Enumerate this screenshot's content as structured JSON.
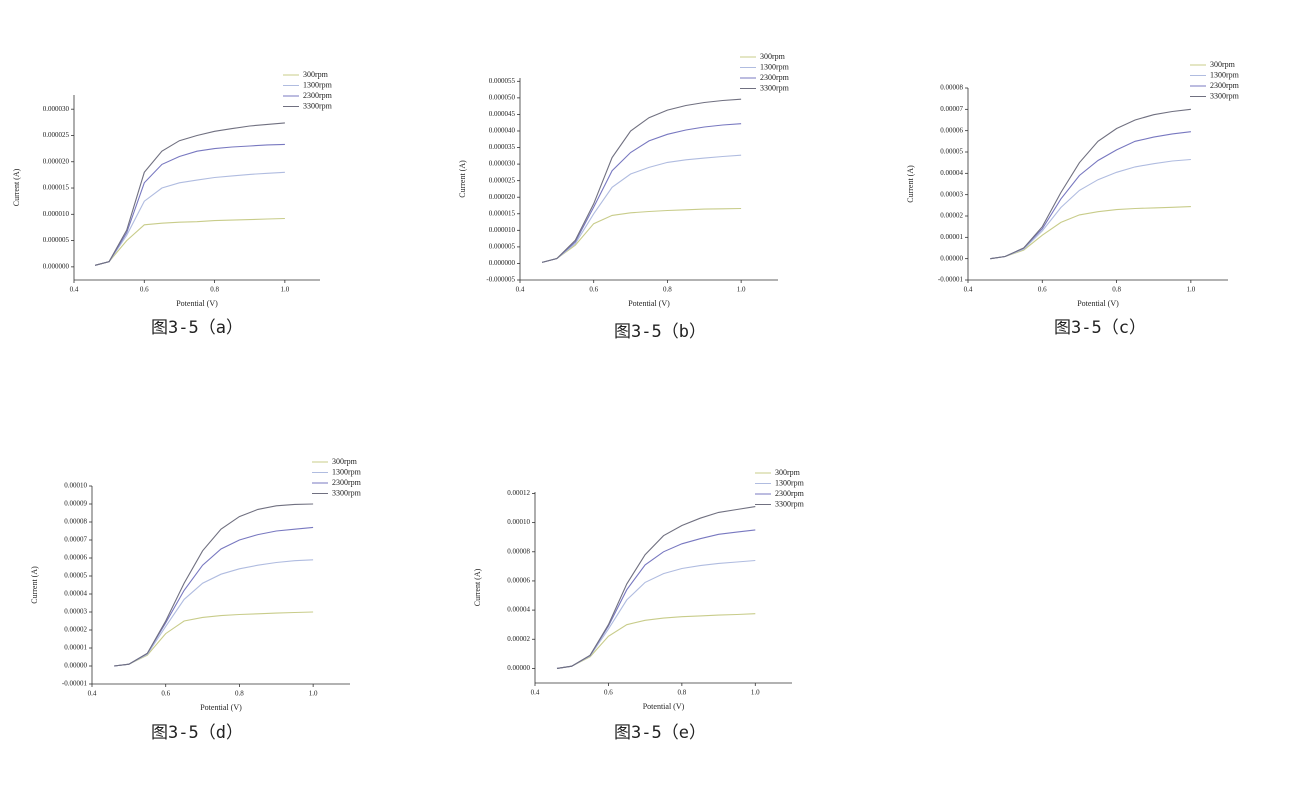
{
  "chart_data": [
    {
      "type": "line",
      "caption": "图3-5（a）",
      "x_label": "Potential (V)",
      "y_label": "Current (A)",
      "x": [
        0.46,
        0.5,
        0.55,
        0.6,
        0.65,
        0.7,
        0.75,
        0.8,
        0.85,
        0.9,
        0.95,
        1.0
      ],
      "xlim": [
        0.4,
        1.1
      ],
      "ylim": [
        -2.5e-06,
        3.27e-05
      ],
      "xticks": [
        0.4,
        0.6,
        0.8,
        {
          "value": 1,
          "label": "1.0"
        }
      ],
      "yticks": [
        {
          "value": 0,
          "label": "0.000000"
        },
        {
          "value": 5e-06,
          "label": "0.000005"
        },
        {
          "value": 1e-05,
          "label": "0.000010"
        },
        {
          "value": 1.5e-05,
          "label": "0.000015"
        },
        {
          "value": 2e-05,
          "label": "0.000020"
        },
        {
          "value": 2.5e-05,
          "label": "0.000025"
        },
        {
          "value": 3e-05,
          "label": "0.000030"
        }
      ],
      "series": [
        {
          "name": "300rpm",
          "color": "#c8cc8a",
          "values": [
            3e-07,
            1e-06,
            5e-06,
            8e-06,
            8.3e-06,
            8.5e-06,
            8.6e-06,
            8.8e-06,
            8.9e-06,
            9e-06,
            9.1e-06,
            9.2e-06
          ]
        },
        {
          "name": "1300rpm",
          "color": "#b0bce0",
          "values": [
            3e-07,
            1e-06,
            6e-06,
            1.25e-05,
            1.5e-05,
            1.6e-05,
            1.65e-05,
            1.7e-05,
            1.73e-05,
            1.76e-05,
            1.78e-05,
            1.8e-05
          ]
        },
        {
          "name": "2300rpm",
          "color": "#7878c0",
          "values": [
            3e-07,
            1e-06,
            6.5e-06,
            1.6e-05,
            1.95e-05,
            2.1e-05,
            2.2e-05,
            2.25e-05,
            2.28e-05,
            2.3e-05,
            2.32e-05,
            2.33e-05
          ]
        },
        {
          "name": "3300rpm",
          "color": "#707080",
          "values": [
            3e-07,
            1e-06,
            7e-06,
            1.8e-05,
            2.2e-05,
            2.4e-05,
            2.5e-05,
            2.58e-05,
            2.63e-05,
            2.68e-05,
            2.71e-05,
            2.74e-05
          ]
        }
      ]
    },
    {
      "type": "line",
      "caption": "图3-5（b）",
      "x_label": "Potential (V)",
      "y_label": "Current (A)",
      "x": [
        0.46,
        0.5,
        0.55,
        0.6,
        0.65,
        0.7,
        0.75,
        0.8,
        0.85,
        0.9,
        0.95,
        1.0
      ],
      "xlim": [
        0.4,
        1.1
      ],
      "ylim": [
        -5e-06,
        5.6e-05
      ],
      "xticks": [
        0.4,
        0.6,
        0.8,
        {
          "value": 1,
          "label": "1.0"
        }
      ],
      "yticks": [
        {
          "value": -5e-06,
          "label": "-0.000005"
        },
        {
          "value": 0,
          "label": "0.000000"
        },
        {
          "value": 5e-06,
          "label": "0.000005"
        },
        {
          "value": 1e-05,
          "label": "0.000010"
        },
        {
          "value": 1.5e-05,
          "label": "0.000015"
        },
        {
          "value": 2e-05,
          "label": "0.000020"
        },
        {
          "value": 2.5e-05,
          "label": "0.000025"
        },
        {
          "value": 3e-05,
          "label": "0.000030"
        },
        {
          "value": 3.5e-05,
          "label": "0.000035"
        },
        {
          "value": 4e-05,
          "label": "0.000040"
        },
        {
          "value": 4.5e-05,
          "label": "0.000045"
        },
        {
          "value": 5e-05,
          "label": "0.000050"
        },
        {
          "value": 5.5e-05,
          "label": "0.000055"
        }
      ],
      "series": [
        {
          "name": "300rpm",
          "color": "#c8cc8a",
          "values": [
            3e-07,
            1.5e-06,
            5.5e-06,
            1.2e-05,
            1.45e-05,
            1.53e-05,
            1.57e-05,
            1.6e-05,
            1.62e-05,
            1.64e-05,
            1.65e-05,
            1.66e-05
          ]
        },
        {
          "name": "1300rpm",
          "color": "#b0bce0",
          "values": [
            3e-07,
            1.5e-06,
            6e-06,
            1.5e-05,
            2.3e-05,
            2.7e-05,
            2.9e-05,
            3.05e-05,
            3.13e-05,
            3.18e-05,
            3.23e-05,
            3.27e-05
          ]
        },
        {
          "name": "2300rpm",
          "color": "#7878c0",
          "values": [
            3e-07,
            1.5e-06,
            6.5e-06,
            1.7e-05,
            2.8e-05,
            3.35e-05,
            3.7e-05,
            3.9e-05,
            4.03e-05,
            4.12e-05,
            4.18e-05,
            4.22e-05
          ]
        },
        {
          "name": "3300rpm",
          "color": "#707080",
          "values": [
            3e-07,
            1.5e-06,
            7e-06,
            1.8e-05,
            3.2e-05,
            4e-05,
            4.4e-05,
            4.63e-05,
            4.77e-05,
            4.86e-05,
            4.92e-05,
            4.96e-05
          ]
        }
      ]
    },
    {
      "type": "line",
      "caption": "图3-5（c）",
      "x_label": "Potential (V)",
      "y_label": "Current (A)",
      "x": [
        0.46,
        0.5,
        0.55,
        0.6,
        0.65,
        0.7,
        0.75,
        0.8,
        0.85,
        0.9,
        0.95,
        1.0
      ],
      "xlim": [
        0.4,
        1.1
      ],
      "ylim": [
        -1e-05,
        8e-05
      ],
      "xticks": [
        0.4,
        0.6,
        0.8,
        {
          "value": 1,
          "label": "1.0"
        }
      ],
      "yticks": [
        {
          "value": -1e-05,
          "label": "-0.00001"
        },
        {
          "value": 0,
          "label": "0.00000"
        },
        {
          "value": 1e-05,
          "label": "0.00001"
        },
        {
          "value": 2e-05,
          "label": "0.00002"
        },
        {
          "value": 3e-05,
          "label": "0.00003"
        },
        {
          "value": 4e-05,
          "label": "0.00004"
        },
        {
          "value": 5e-05,
          "label": "0.00005"
        },
        {
          "value": 6e-05,
          "label": "0.00006"
        },
        {
          "value": 7e-05,
          "label": "0.00007"
        },
        {
          "value": 8e-05,
          "label": "0.00008"
        }
      ],
      "series": [
        {
          "name": "300rpm",
          "color": "#c8cc8a",
          "values": [
            0,
            1e-06,
            4e-06,
            1.1e-05,
            1.7e-05,
            2.05e-05,
            2.2e-05,
            2.3e-05,
            2.35e-05,
            2.38e-05,
            2.41e-05,
            2.44e-05
          ]
        },
        {
          "name": "1300rpm",
          "color": "#b0bce0",
          "values": [
            0,
            1e-06,
            4.5e-06,
            1.3e-05,
            2.4e-05,
            3.2e-05,
            3.7e-05,
            4.05e-05,
            4.3e-05,
            4.45e-05,
            4.58e-05,
            4.65e-05
          ]
        },
        {
          "name": "2300rpm",
          "color": "#7878c0",
          "values": [
            0,
            1e-06,
            5e-06,
            1.4e-05,
            2.8e-05,
            3.9e-05,
            4.6e-05,
            5.1e-05,
            5.5e-05,
            5.7e-05,
            5.85e-05,
            5.95e-05
          ]
        },
        {
          "name": "3300rpm",
          "color": "#707080",
          "values": [
            0,
            1e-06,
            5e-06,
            1.5e-05,
            3.1e-05,
            4.5e-05,
            5.5e-05,
            6.1e-05,
            6.5e-05,
            6.75e-05,
            6.9e-05,
            7e-05
          ]
        }
      ]
    },
    {
      "type": "line",
      "caption": "图3-5（d）",
      "x_label": "Potential (V)",
      "y_label": "Current (A)",
      "x": [
        0.46,
        0.5,
        0.55,
        0.6,
        0.65,
        0.7,
        0.75,
        0.8,
        0.85,
        0.9,
        0.95,
        1.0
      ],
      "xlim": [
        0.4,
        1.1
      ],
      "ylim": [
        -1e-05,
        0.0001
      ],
      "xticks": [
        0.4,
        0.6,
        0.8,
        {
          "value": 1,
          "label": "1.0"
        }
      ],
      "yticks": [
        {
          "value": -1e-05,
          "label": "-0.00001"
        },
        {
          "value": 0,
          "label": "0.00000"
        },
        {
          "value": 1e-05,
          "label": "0.00001"
        },
        {
          "value": 2e-05,
          "label": "0.00002"
        },
        {
          "value": 3e-05,
          "label": "0.00003"
        },
        {
          "value": 4e-05,
          "label": "0.00004"
        },
        {
          "value": 5e-05,
          "label": "0.00005"
        },
        {
          "value": 6e-05,
          "label": "0.00006"
        },
        {
          "value": 7e-05,
          "label": "0.00007"
        },
        {
          "value": 8e-05,
          "label": "0.00008"
        },
        {
          "value": 9e-05,
          "label": "0.00009"
        },
        {
          "value": 0.0001,
          "label": "0.00010"
        }
      ],
      "series": [
        {
          "name": "300rpm",
          "color": "#c8cc8a",
          "values": [
            0,
            1e-06,
            6e-06,
            1.8e-05,
            2.5e-05,
            2.7e-05,
            2.8e-05,
            2.86e-05,
            2.9e-05,
            2.94e-05,
            2.97e-05,
            3e-05
          ]
        },
        {
          "name": "1300rpm",
          "color": "#b0bce0",
          "values": [
            0,
            1e-06,
            6.5e-06,
            2.2e-05,
            3.7e-05,
            4.6e-05,
            5.1e-05,
            5.4e-05,
            5.6e-05,
            5.75e-05,
            5.85e-05,
            5.9e-05
          ]
        },
        {
          "name": "2300rpm",
          "color": "#7878c0",
          "values": [
            0,
            1e-06,
            7e-06,
            2.4e-05,
            4.2e-05,
            5.6e-05,
            6.5e-05,
            7e-05,
            7.3e-05,
            7.5e-05,
            7.6e-05,
            7.7e-05
          ]
        },
        {
          "name": "3300rpm",
          "color": "#707080",
          "values": [
            0,
            1e-06,
            7e-06,
            2.5e-05,
            4.6e-05,
            6.4e-05,
            7.6e-05,
            8.3e-05,
            8.7e-05,
            8.9e-05,
            8.98e-05,
            9e-05
          ]
        }
      ]
    },
    {
      "type": "line",
      "caption": "图3-5（e）",
      "x_label": "Potential (V)",
      "y_label": "Current (A)",
      "x": [
        0.46,
        0.5,
        0.55,
        0.6,
        0.65,
        0.7,
        0.75,
        0.8,
        0.85,
        0.9,
        0.95,
        1.0
      ],
      "xlim": [
        0.4,
        1.1
      ],
      "ylim": [
        -1e-05,
        0.000121
      ],
      "xticks": [
        0.4,
        0.6,
        0.8,
        {
          "value": 1,
          "label": "1.0"
        }
      ],
      "yticks": [
        {
          "value": 0,
          "label": "0.00000"
        },
        {
          "value": 2e-05,
          "label": "0.00002"
        },
        {
          "value": 4e-05,
          "label": "0.00004"
        },
        {
          "value": 6e-05,
          "label": "0.00006"
        },
        {
          "value": 8e-05,
          "label": "0.00008"
        },
        {
          "value": 0.0001,
          "label": "0.00010"
        },
        {
          "value": 0.00012,
          "label": "0.00012"
        }
      ],
      "series": [
        {
          "name": "300rpm",
          "color": "#c8cc8a",
          "values": [
            0,
            1.5e-06,
            8e-06,
            2.2e-05,
            3e-05,
            3.3e-05,
            3.45e-05,
            3.55e-05,
            3.6e-05,
            3.66e-05,
            3.7e-05,
            3.75e-05
          ]
        },
        {
          "name": "1300rpm",
          "color": "#b0bce0",
          "values": [
            0,
            1.5e-06,
            8.5e-06,
            2.7e-05,
            4.7e-05,
            5.9e-05,
            6.5e-05,
            6.85e-05,
            7.05e-05,
            7.2e-05,
            7.3e-05,
            7.4e-05
          ]
        },
        {
          "name": "2300rpm",
          "color": "#7878c0",
          "values": [
            0,
            1.5e-06,
            9e-06,
            2.9e-05,
            5.4e-05,
            7.1e-05,
            8e-05,
            8.55e-05,
            8.9e-05,
            9.2e-05,
            9.35e-05,
            9.5e-05
          ]
        },
        {
          "name": "3300rpm",
          "color": "#707080",
          "values": [
            0,
            1.5e-06,
            9e-06,
            3e-05,
            5.8e-05,
            7.8e-05,
            9.1e-05,
            9.8e-05,
            0.000103,
            0.000107,
            0.000109,
            0.000111
          ]
        }
      ]
    }
  ]
}
